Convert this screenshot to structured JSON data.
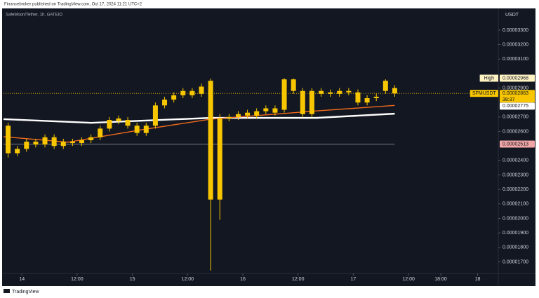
{
  "header": {
    "published": "Financebroker published on TradingView.com, Oct 17, 2024 11:21 UTC+2"
  },
  "footer": {
    "brand": "TradingView"
  },
  "chart_data": {
    "type": "candlestick",
    "title": "SafeMoon/Tether, 1h, GATEIO",
    "currency": "USDT",
    "color": "#f7c600",
    "x": [
      -3,
      -1,
      1,
      3,
      5,
      7,
      9,
      11,
      13,
      15,
      17,
      19,
      21,
      23,
      25,
      27,
      29,
      31,
      33,
      35,
      37,
      39,
      41,
      43,
      45,
      47,
      49,
      51,
      53,
      55,
      57,
      59,
      61,
      63,
      65,
      67,
      69,
      71,
      73,
      75,
      77,
      79,
      81
    ],
    "open": [
      2.64e-05,
      2.45e-05,
      2.48e-05,
      2.53e-05,
      2.51e-05,
      2.56e-05,
      2.5e-05,
      2.53e-05,
      2.52e-05,
      2.54e-05,
      2.56e-05,
      2.62e-05,
      2.67e-05,
      2.68e-05,
      2.64e-05,
      2.59e-05,
      2.64e-05,
      2.78e-05,
      2.82e-05,
      2.85e-05,
      2.88e-05,
      2.86e-05,
      2.95e-05,
      2.13e-05,
      2.69e-05,
      2.7e-05,
      2.71e-05,
      2.71e-05,
      2.74e-05,
      2.76e-05,
      2.75e-05,
      2.96e-05,
      2.88e-05,
      2.72e-05,
      2.88e-05,
      2.86e-05,
      2.86e-05,
      2.88e-05,
      2.87e-05,
      2.8e-05,
      2.83e-05,
      2.88e-05,
      2.9e-05
    ],
    "high": [
      2.66e-05,
      2.5e-05,
      2.55e-05,
      2.55e-05,
      2.58e-05,
      2.58e-05,
      2.55e-05,
      2.55e-05,
      2.56e-05,
      2.58e-05,
      2.64e-05,
      2.7e-05,
      2.71e-05,
      2.7e-05,
      2.66e-05,
      2.66e-05,
      2.8e-05,
      2.84e-05,
      2.87e-05,
      2.9e-05,
      2.9e-05,
      2.93e-05,
      2.965e-05,
      2.72e-05,
      2.72e-05,
      2.74e-05,
      2.75e-05,
      2.76e-05,
      2.78e-05,
      2.78e-05,
      2.968e-05,
      2.966e-05,
      2.9e-05,
      2.9e-05,
      2.9e-05,
      2.89e-05,
      2.9e-05,
      2.9e-05,
      2.89e-05,
      2.85e-05,
      2.86e-05,
      2.96e-05,
      2.92e-05
    ],
    "low": [
      2.42e-05,
      2.43e-05,
      2.46e-05,
      2.49e-05,
      2.49e-05,
      2.48e-05,
      2.48e-05,
      2.5e-05,
      2.5e-05,
      2.52e-05,
      2.54e-05,
      2.6e-05,
      2.65e-05,
      2.62e-05,
      2.57e-05,
      2.57e-05,
      2.62e-05,
      2.76e-05,
      2.8e-05,
      2.83e-05,
      2.83e-05,
      2.84e-05,
      1.64e-05,
      1.99e-05,
      2.67e-05,
      2.68e-05,
      2.69e-05,
      2.69e-05,
      2.72e-05,
      2.71e-05,
      2.73e-05,
      2.86e-05,
      2.7e-05,
      2.7e-05,
      2.84e-05,
      2.84e-05,
      2.84e-05,
      2.85e-05,
      2.78e-05,
      2.78e-05,
      2.81e-05,
      2.86e-05,
      2.84e-05
    ],
    "close": [
      2.45e-05,
      2.48e-05,
      2.53e-05,
      2.51e-05,
      2.56e-05,
      2.5e-05,
      2.53e-05,
      2.52e-05,
      2.54e-05,
      2.56e-05,
      2.62e-05,
      2.68e-05,
      2.69e-05,
      2.64e-05,
      2.59e-05,
      2.64e-05,
      2.78e-05,
      2.82e-05,
      2.85e-05,
      2.88e-05,
      2.85e-05,
      2.91e-05,
      2.13e-05,
      2.69e-05,
      2.7e-05,
      2.72e-05,
      2.73e-05,
      2.74e-05,
      2.76e-05,
      2.73e-05,
      2.96e-05,
      2.88e-05,
      2.72e-05,
      2.88e-05,
      2.86e-05,
      2.87e-05,
      2.88e-05,
      2.87e-05,
      2.8e-05,
      2.83e-05,
      2.84e-05,
      2.95e-05,
      2.863e-05
    ],
    "lines": [
      {
        "color": "#ffffff",
        "x": [
          -4,
          15,
          41,
          64,
          81
        ],
        "values": [
          2.685e-05,
          2.66e-05,
          2.694e-05,
          2.694e-05,
          2.723e-05
        ]
      },
      {
        "color": "#f26b1d",
        "x": [
          -4,
          10,
          26,
          41,
          64,
          81
        ],
        "values": [
          2.564e-05,
          2.526e-05,
          2.612e-05,
          2.685e-05,
          2.742e-05,
          2.78e-05
        ]
      }
    ],
    "markers": [
      {
        "text": "High",
        "value": 2.968e-05,
        "label": "0.00002968",
        "color": "#fff3c4"
      },
      {
        "text": "SFMUSDT",
        "value": 2.863e-05,
        "label": "0.00002863",
        "countdown": "38:37",
        "color": "#f7c600"
      },
      {
        "value": 2.775e-05,
        "label": "0.00002775",
        "color": "#ffffff"
      },
      {
        "value": 2.513e-05,
        "label": "0.00002513",
        "color": "#f2a7a7"
      }
    ],
    "xlim": [
      -4,
      103.5
    ],
    "xticks": [
      {
        "value": 0,
        "label": "14"
      },
      {
        "value": 12,
        "label": "12:00"
      },
      {
        "value": 24,
        "label": "15"
      },
      {
        "value": 36,
        "label": "12:00"
      },
      {
        "value": 48,
        "label": "16"
      },
      {
        "value": 60,
        "label": "12:00"
      },
      {
        "value": 72,
        "label": "17"
      },
      {
        "value": 84,
        "label": "12:00"
      },
      {
        "value": 91,
        "label": "18:00"
      },
      {
        "value": 99,
        "label": "18"
      }
    ],
    "ylim": [
      1.62e-05,
      3.44e-05
    ],
    "yticks": [
      {
        "value": 3.3e-05,
        "label": "0.00003300"
      },
      {
        "value": 3.2e-05,
        "label": "0.00003200"
      },
      {
        "value": 3.1e-05,
        "label": "0.00003100"
      },
      {
        "value": 2.9e-05,
        "label": "0.00002900"
      },
      {
        "value": 2.7e-05,
        "label": "0.00002700"
      },
      {
        "value": 2.6e-05,
        "label": "0.00002600"
      },
      {
        "value": 2.4e-05,
        "label": "0.00002400"
      },
      {
        "value": 2.3e-05,
        "label": "0.00002300"
      },
      {
        "value": 2.2e-05,
        "label": "0.00002200"
      },
      {
        "value": 2.1e-05,
        "label": "0.00002100"
      },
      {
        "value": 2e-05,
        "label": "0.00002000"
      },
      {
        "value": 1.9e-05,
        "label": "0.00001900"
      },
      {
        "value": 1.8e-05,
        "label": "0.00001800"
      },
      {
        "value": 1.7e-05,
        "label": "0.00001700"
      }
    ]
  }
}
